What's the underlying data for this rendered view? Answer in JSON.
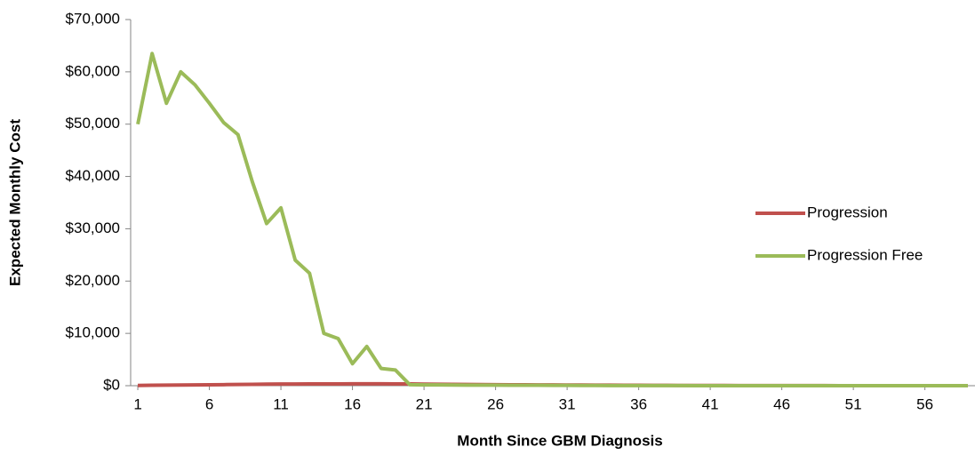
{
  "chart_data": {
    "type": "line",
    "x_label": "Month Since GBM Diagnosis",
    "y_label": "Expected Monthly Cost",
    "x": [
      1,
      2,
      3,
      4,
      5,
      6,
      7,
      8,
      9,
      10,
      11,
      12,
      13,
      14,
      15,
      16,
      17,
      18,
      19,
      20,
      21,
      22,
      23,
      24,
      25,
      26,
      27,
      28,
      29,
      30,
      31,
      32,
      33,
      34,
      35,
      36,
      37,
      38,
      39,
      40,
      41,
      42,
      43,
      44,
      45,
      46,
      47,
      48,
      49,
      50,
      51,
      52,
      53,
      54,
      55,
      56,
      57,
      58,
      59
    ],
    "xlim": [
      0.5,
      59.5
    ],
    "xticks": [
      1,
      6,
      11,
      16,
      21,
      26,
      31,
      36,
      41,
      46,
      51,
      56
    ],
    "ylim": [
      0,
      70000
    ],
    "yticks": [
      {
        "value": 0,
        "label": "$0"
      },
      {
        "value": 10000,
        "label": "$10,000"
      },
      {
        "value": 20000,
        "label": "$20,000"
      },
      {
        "value": 30000,
        "label": "$30,000"
      },
      {
        "value": 40000,
        "label": "$40,000"
      },
      {
        "value": 50000,
        "label": "$50,000"
      },
      {
        "value": 60000,
        "label": "$60,000"
      },
      {
        "value": 70000,
        "label": "$70,000"
      }
    ],
    "legend": "right",
    "series": [
      {
        "name": "Progression",
        "color": "#c0504d",
        "values": [
          50,
          80,
          100,
          120,
          150,
          180,
          200,
          230,
          260,
          290,
          310,
          320,
          330,
          340,
          350,
          360,
          370,
          370,
          350,
          330,
          300,
          280,
          260,
          240,
          220,
          200,
          180,
          160,
          150,
          140,
          130,
          120,
          110,
          100,
          90,
          80,
          70,
          60,
          50,
          50,
          40,
          40,
          30,
          30,
          30,
          20,
          20,
          20,
          20,
          10,
          10,
          10,
          10,
          10,
          10,
          0,
          0,
          0,
          0
        ]
      },
      {
        "name": "Progression Free",
        "color": "#9bbb59",
        "values": [
          50000,
          63500,
          54000,
          60000,
          57500,
          54000,
          50300,
          48000,
          39000,
          31000,
          34000,
          24000,
          21500,
          10000,
          9000,
          4200,
          7500,
          3300,
          3000,
          200,
          150,
          150,
          120,
          100,
          100,
          100,
          90,
          80,
          80,
          70,
          60,
          50,
          40,
          30,
          20,
          20,
          20,
          20,
          20,
          10,
          10,
          10,
          10,
          10,
          10,
          10,
          10,
          10,
          10,
          0,
          0,
          0,
          0,
          0,
          0,
          0,
          0,
          0,
          0
        ]
      }
    ]
  }
}
